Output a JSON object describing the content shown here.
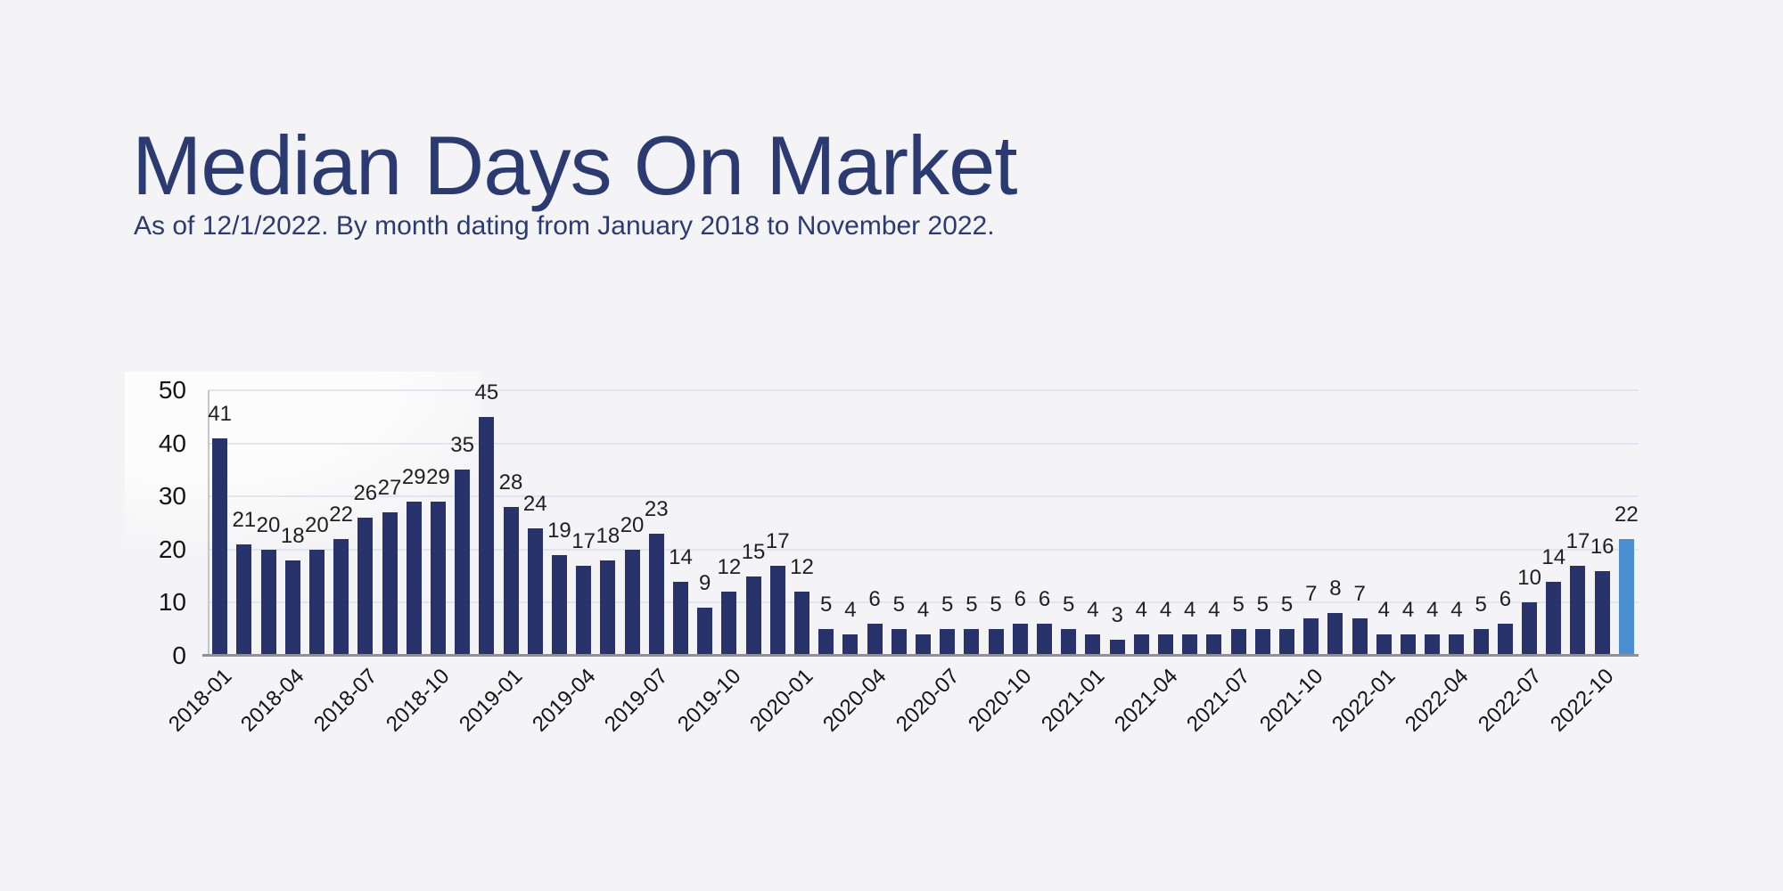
{
  "page": {
    "title": "Median Days On Market",
    "subtitle": "As of 12/1/2022. By month dating from January 2018 to November 2022."
  },
  "chart_data": {
    "type": "bar",
    "title": "Median Days On Market",
    "subtitle": "As of 12/1/2022. By month dating from January 2018 to November 2022.",
    "xlabel": "",
    "ylabel": "",
    "ylim": [
      0,
      50
    ],
    "yticks": [
      0,
      10,
      20,
      30,
      40,
      50
    ],
    "grid": true,
    "legend": "none",
    "x_tick_every_n": 3,
    "categories": [
      "2018-01",
      "2018-02",
      "2018-03",
      "2018-04",
      "2018-05",
      "2018-06",
      "2018-07",
      "2018-08",
      "2018-09",
      "2018-10",
      "2018-11",
      "2018-12",
      "2019-01",
      "2019-02",
      "2019-03",
      "2019-04",
      "2019-05",
      "2019-06",
      "2019-07",
      "2019-08",
      "2019-09",
      "2019-10",
      "2019-11",
      "2019-12",
      "2020-01",
      "2020-02",
      "2020-03",
      "2020-04",
      "2020-05",
      "2020-06",
      "2020-07",
      "2020-08",
      "2020-09",
      "2020-10",
      "2020-11",
      "2020-12",
      "2021-01",
      "2021-02",
      "2021-03",
      "2021-04",
      "2021-05",
      "2021-06",
      "2021-07",
      "2021-08",
      "2021-09",
      "2021-10",
      "2021-11",
      "2021-12",
      "2022-01",
      "2022-02",
      "2022-03",
      "2022-04",
      "2022-05",
      "2022-06",
      "2022-07",
      "2022-08",
      "2022-09",
      "2022-10",
      "2022-11"
    ],
    "values": [
      41,
      21,
      20,
      18,
      20,
      22,
      26,
      27,
      29,
      29,
      35,
      45,
      28,
      24,
      19,
      17,
      18,
      20,
      23,
      14,
      9,
      12,
      15,
      17,
      12,
      5,
      4,
      6,
      5,
      4,
      5,
      5,
      5,
      6,
      6,
      5,
      4,
      3,
      4,
      4,
      4,
      4,
      5,
      5,
      5,
      7,
      8,
      7,
      4,
      4,
      4,
      4,
      5,
      6,
      10,
      14,
      17,
      16,
      22
    ],
    "highlight_index": 58
  },
  "colors": {
    "background": "#f4f4f6",
    "title_text": "#2c3a72",
    "bar": "#27336a",
    "bar_highlight": "#4a8fd1",
    "gridline": "#dfe5f1",
    "axis_line": "#c6c6cd",
    "baseline": "#909098",
    "value_label": "#1f1f1f",
    "tick_label": "#141414"
  }
}
